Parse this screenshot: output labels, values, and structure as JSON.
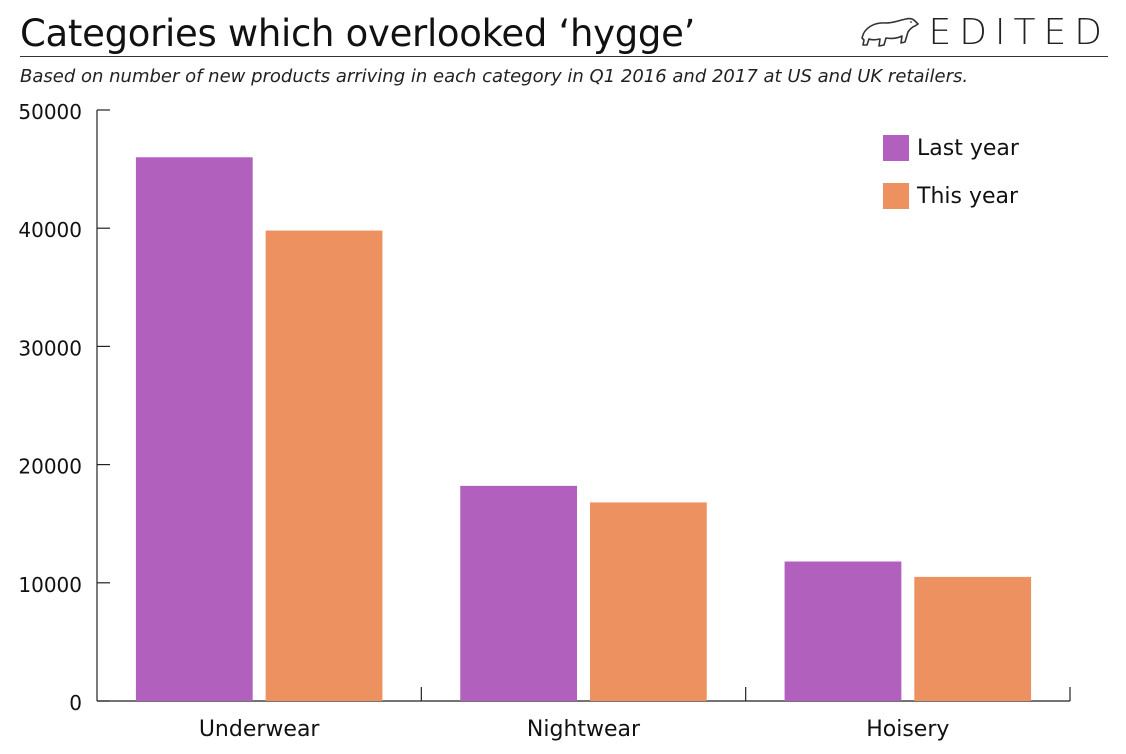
{
  "header": {
    "title": "Categories which overlooked ‘hygge’",
    "subtitle": "Based on number of new products arriving in each category in Q1 2016 and 2017 at US and UK retailers.",
    "brand": "EDITED",
    "brand_logo_icon": "polar-bear-icon"
  },
  "colors": {
    "last_year": "#B260BE",
    "this_year": "#EE9160",
    "axis": "#222222"
  },
  "chart_data": {
    "type": "bar",
    "categories": [
      "Underwear",
      "Nightwear",
      "Hoisery"
    ],
    "series": [
      {
        "name": "Last year",
        "values": [
          46000,
          18200,
          11800
        ]
      },
      {
        "name": "This year",
        "values": [
          39800,
          16800,
          10500
        ]
      }
    ],
    "y_ticks": [
      "0",
      "10000",
      "20000",
      "30000",
      "40000",
      "50000"
    ],
    "ylim": [
      0,
      50000
    ],
    "title": "Categories which overlooked ‘hygge’",
    "xlabel": "",
    "ylabel": "",
    "grid": false,
    "legend_position": "top-right"
  }
}
